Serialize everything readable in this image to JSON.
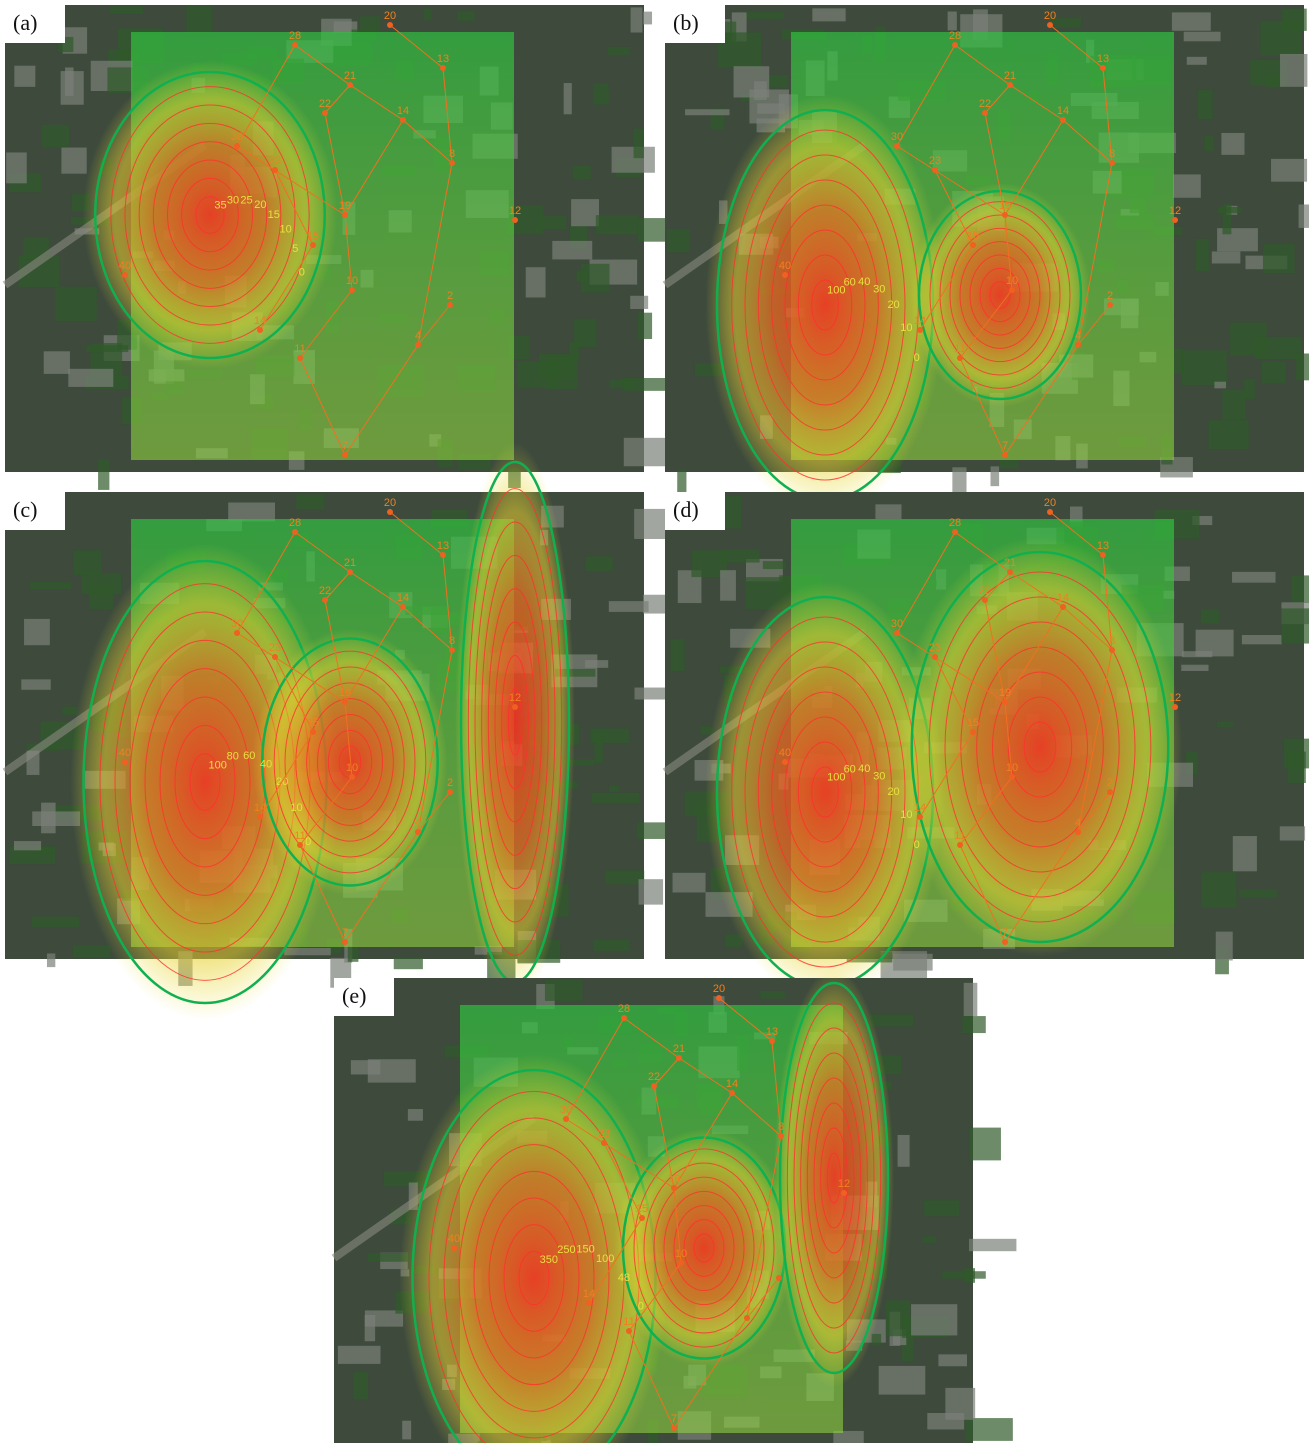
{
  "panels": [
    {
      "label": "(a)",
      "contour_labels": [
        "35",
        "30",
        "25",
        "20",
        "15",
        "10",
        "5",
        "0"
      ]
    },
    {
      "label": "(b)",
      "contour_labels": [
        "100",
        "60",
        "40",
        "30",
        "20",
        "10",
        "0"
      ]
    },
    {
      "label": "(c)",
      "contour_labels": [
        "100",
        "80",
        "60",
        "40",
        "20",
        "10",
        "0"
      ]
    },
    {
      "label": "(d)",
      "contour_labels": [
        "100",
        "60",
        "40",
        "30",
        "20",
        "10",
        "0"
      ]
    },
    {
      "label": "(e)",
      "contour_labels": [
        "350",
        "250",
        "150",
        "100",
        "48",
        "0"
      ]
    }
  ],
  "grid_points": [
    "20",
    "28",
    "13",
    "21",
    "22",
    "14",
    "30",
    "8",
    "23",
    "19",
    "15",
    "10",
    "14",
    "11",
    "4",
    "2",
    "7",
    "40",
    "12"
  ]
}
